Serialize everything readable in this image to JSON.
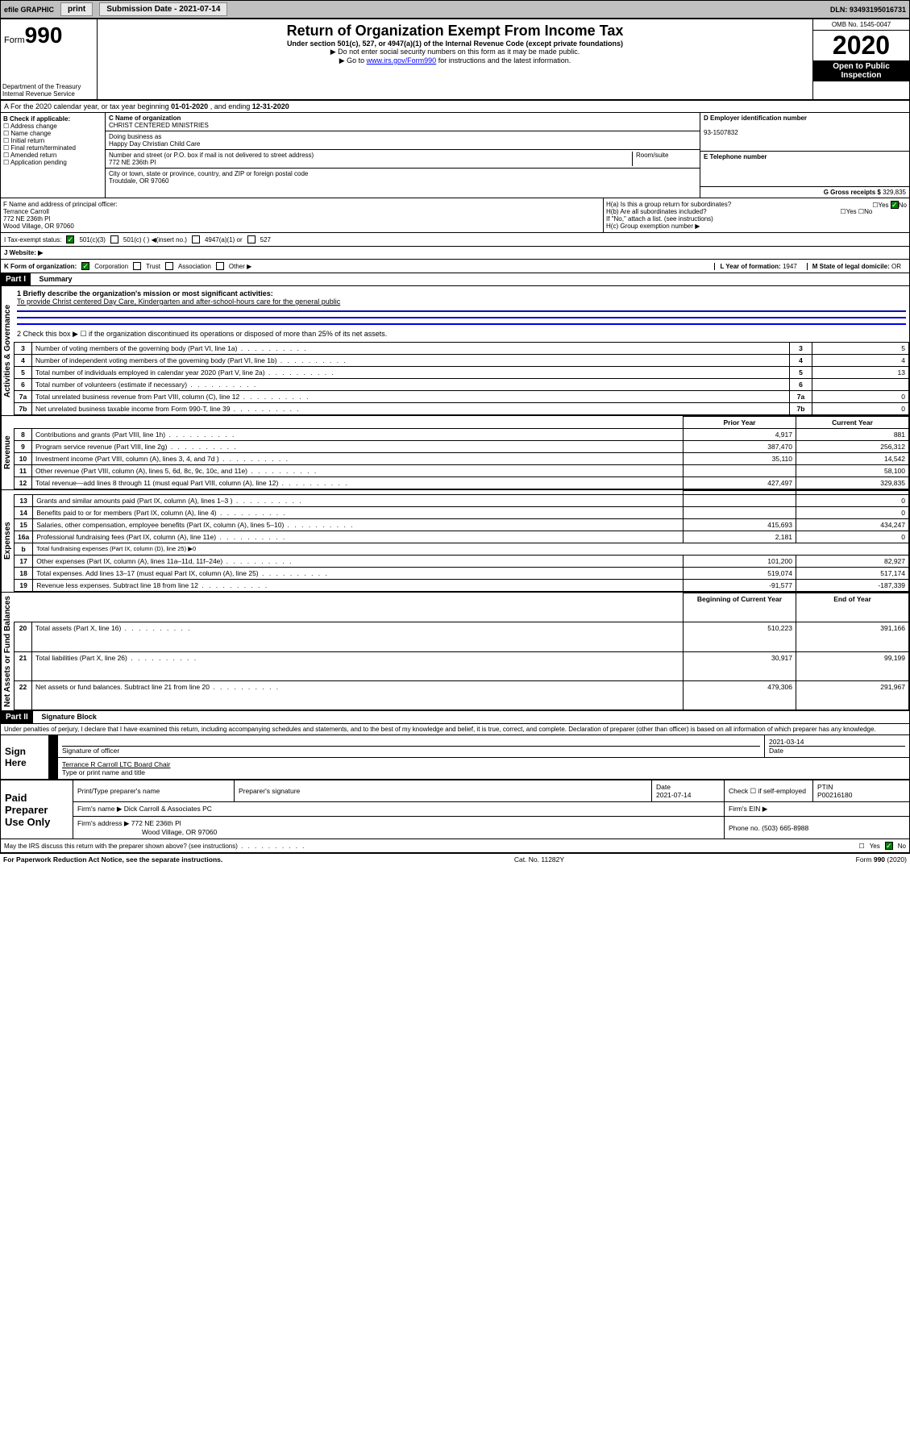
{
  "colors": {
    "topbar_bg": "#c0c0c0",
    "black": "#000000",
    "green_check": "#008000",
    "link": "#0000ff"
  },
  "topbar": {
    "efile": "efile GRAPHIC",
    "print": "print",
    "sub_date_lbl": "Submission Date - 2021-07-14",
    "dln_lbl": "DLN: 93493195016731"
  },
  "header": {
    "form_word": "Form",
    "form_no": "990",
    "dept": "Department of the Treasury\nInternal Revenue Service",
    "title": "Return of Organization Exempt From Income Tax",
    "subtitle": "Under section 501(c), 527, or 4947(a)(1) of the Internal Revenue Code (except private foundations)",
    "note1": "▶ Do not enter social security numbers on this form as it may be made public.",
    "note2_pre": "▶ Go to ",
    "note2_link": "www.irs.gov/Form990",
    "note2_post": " for instructions and the latest information.",
    "omb": "OMB No. 1545-0047",
    "year": "2020",
    "open": "Open to Public Inspection"
  },
  "section_a": {
    "text_pre": "A For the 2020 calendar year, or tax year beginning ",
    "begin": "01-01-2020",
    "mid": " , and ending ",
    "end": "12-31-2020"
  },
  "box_b": {
    "lbl": "B Check if applicable:",
    "opts": [
      "Address change",
      "Name change",
      "Initial return",
      "Final return/terminated",
      "Amended return",
      "Application pending"
    ]
  },
  "box_c": {
    "name_lbl": "C Name of organization",
    "name": "CHRIST CENTERED MINISTRIES",
    "dba_lbl": "Doing business as",
    "dba": "Happy Day Christian Child Care",
    "addr_lbl": "Number and street (or P.O. box if mail is not delivered to street address)",
    "room_lbl": "Room/suite",
    "addr": "772 NE 236th Pl",
    "city_lbl": "City or town, state or province, country, and ZIP or foreign postal code",
    "city": "Troutdale, OR  97060"
  },
  "box_d": {
    "lbl": "D Employer identification number",
    "val": "93-1507832"
  },
  "box_e": {
    "lbl": "E Telephone number",
    "val": ""
  },
  "box_g": {
    "lbl": "G Gross receipts $",
    "val": "329,835"
  },
  "box_f": {
    "lbl": "F  Name and address of principal officer:",
    "name": "Terrance Carroll",
    "addr1": "772 NE 236th Pl",
    "addr2": "Wood Village, OR  97060"
  },
  "box_h": {
    "ha": "H(a)  Is this a group return for subordinates?",
    "hb": "H(b)  Are all subordinates included?",
    "hb_note": "If \"No,\" attach a list. (see instructions)",
    "hc": "H(c)  Group exemption number ▶",
    "yes": "Yes",
    "no": "No"
  },
  "tax_status": {
    "lbl": "I   Tax-exempt status:",
    "o1": "501(c)(3)",
    "o2": "501(c) (   ) ◀(insert no.)",
    "o3": "4947(a)(1) or",
    "o4": "527"
  },
  "web": {
    "lbl": "J   Website: ▶"
  },
  "row_k": {
    "lbl": "K Form of organization:",
    "o1": "Corporation",
    "o2": "Trust",
    "o3": "Association",
    "o4": "Other ▶",
    "l_lbl": "L Year of formation:",
    "l_val": "1947",
    "m_lbl": "M State of legal domicile:",
    "m_val": "OR"
  },
  "part1": {
    "hdr": "Part I",
    "title": "Summary",
    "side_gov": "Activities & Governance",
    "side_rev": "Revenue",
    "side_exp": "Expenses",
    "side_net": "Net Assets or Fund Balances",
    "q1_lbl": "1  Briefly describe the organization's mission or most significant activities:",
    "q1_val": "To provide Christ centered Day Care, Kindergarten and after-school-hours care for the general public",
    "q2": "2   Check this box ▶ ☐  if the organization discontinued its operations or disposed of more than 25% of its net assets.",
    "lines_gov": [
      {
        "n": "3",
        "t": "Number of voting members of the governing body (Part VI, line 1a)",
        "v": "5"
      },
      {
        "n": "4",
        "t": "Number of independent voting members of the governing body (Part VI, line 1b)",
        "v": "4"
      },
      {
        "n": "5",
        "t": "Total number of individuals employed in calendar year 2020 (Part V, line 2a)",
        "v": "13"
      },
      {
        "n": "6",
        "t": "Total number of volunteers (estimate if necessary)",
        "v": ""
      },
      {
        "n": "7a",
        "t": "Total unrelated business revenue from Part VIII, column (C), line 12",
        "v": "0"
      },
      {
        "n": "7b",
        "t": "Net unrelated business taxable income from Form 990-T, line 39",
        "v": "0"
      }
    ],
    "col_prior": "Prior Year",
    "col_curr": "Current Year",
    "rev": [
      {
        "n": "8",
        "t": "Contributions and grants (Part VIII, line 1h)",
        "p": "4,917",
        "c": "881"
      },
      {
        "n": "9",
        "t": "Program service revenue (Part VIII, line 2g)",
        "p": "387,470",
        "c": "256,312"
      },
      {
        "n": "10",
        "t": "Investment income (Part VIII, column (A), lines 3, 4, and 7d )",
        "p": "35,110",
        "c": "14,542"
      },
      {
        "n": "11",
        "t": "Other revenue (Part VIII, column (A), lines 5, 6d, 8c, 9c, 10c, and 11e)",
        "p": "",
        "c": "58,100"
      },
      {
        "n": "12",
        "t": "Total revenue—add lines 8 through 11 (must equal Part VIII, column (A), line 12)",
        "p": "427,497",
        "c": "329,835"
      }
    ],
    "exp": [
      {
        "n": "13",
        "t": "Grants and similar amounts paid (Part IX, column (A), lines 1–3 )",
        "p": "",
        "c": "0"
      },
      {
        "n": "14",
        "t": "Benefits paid to or for members (Part IX, column (A), line 4)",
        "p": "",
        "c": "0"
      },
      {
        "n": "15",
        "t": "Salaries, other compensation, employee benefits (Part IX, column (A), lines 5–10)",
        "p": "415,693",
        "c": "434,247"
      },
      {
        "n": "16a",
        "t": "Professional fundraising fees (Part IX, column (A), line 11e)",
        "p": "2,181",
        "c": "0"
      },
      {
        "n": "b",
        "t": "Total fundraising expenses (Part IX, column (D), line 25) ▶0",
        "p": "",
        "c": "",
        "noval": true
      },
      {
        "n": "17",
        "t": "Other expenses (Part IX, column (A), lines 11a–11d, 11f–24e)",
        "p": "101,200",
        "c": "82,927"
      },
      {
        "n": "18",
        "t": "Total expenses. Add lines 13–17 (must equal Part IX, column (A), line 25)",
        "p": "519,074",
        "c": "517,174"
      },
      {
        "n": "19",
        "t": "Revenue less expenses. Subtract line 18 from line 12",
        "p": "-91,577",
        "c": "-187,339"
      }
    ],
    "col_beg": "Beginning of Current Year",
    "col_end": "End of Year",
    "net": [
      {
        "n": "20",
        "t": "Total assets (Part X, line 16)",
        "p": "510,223",
        "c": "391,166"
      },
      {
        "n": "21",
        "t": "Total liabilities (Part X, line 26)",
        "p": "30,917",
        "c": "99,199"
      },
      {
        "n": "22",
        "t": "Net assets or fund balances. Subtract line 21 from line 20",
        "p": "479,306",
        "c": "291,967"
      }
    ]
  },
  "part2": {
    "hdr": "Part II",
    "title": "Signature Block",
    "decl": "Under penalties of perjury, I declare that I have examined this return, including accompanying schedules and statements, and to the best of my knowledge and belief, it is true, correct, and complete. Declaration of preparer (other than officer) is based on all information of which preparer has any knowledge.",
    "sign_here": "Sign Here",
    "sig_officer": "Signature of officer",
    "sig_date": "2021-03-14",
    "date_lbl": "Date",
    "officer_name": "Terrance R Carroll LTC  Board Chair",
    "type_name": "Type or print name and title",
    "paid": "Paid Preparer Use Only",
    "prep_name_lbl": "Print/Type preparer's name",
    "prep_sig_lbl": "Preparer's signature",
    "prep_date_lbl": "Date",
    "prep_date": "2021-07-14",
    "self_emp": "Check ☐ if self-employed",
    "ptin_lbl": "PTIN",
    "ptin": "P00216180",
    "firm_name_lbl": "Firm's name   ▶",
    "firm_name": "Dick Carroll & Associates PC",
    "firm_ein_lbl": "Firm's EIN ▶",
    "firm_addr_lbl": "Firm's address ▶",
    "firm_addr1": "772 NE 236th Pl",
    "firm_addr2": "Wood Village, OR  97060",
    "phone_lbl": "Phone no.",
    "phone": "(503) 665-8988",
    "discuss": "May the IRS discuss this return with the preparer shown above? (see instructions)",
    "yes": "Yes",
    "no": "No"
  },
  "footer": {
    "pra": "For Paperwork Reduction Act Notice, see the separate instructions.",
    "cat": "Cat. No. 11282Y",
    "form": "Form 990 (2020)"
  }
}
